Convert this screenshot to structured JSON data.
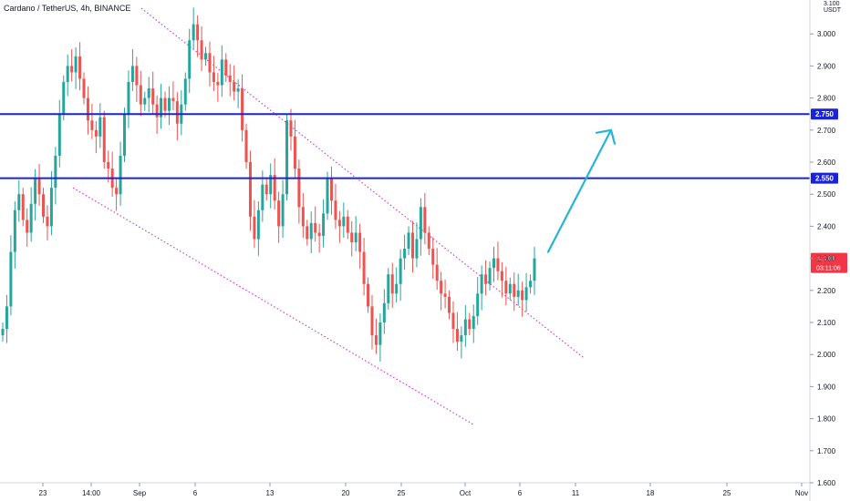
{
  "header": {
    "symbol": "Cardano / TetherUS, 4h, BINANCE"
  },
  "axis": {
    "unit_top": "3.100",
    "unit_label": "USDT"
  },
  "chart_data": {
    "type": "candlestick",
    "symbol": "Cardano / TetherUS",
    "timeframe": "4h",
    "exchange": "BINANCE",
    "y_ticks": [
      "3.000",
      "2.900",
      "2.800",
      "2.700",
      "2.600",
      "2.500",
      "2.400",
      "2.300",
      "2.200",
      "2.100",
      "2.000",
      "1.900",
      "1.800",
      "1.700",
      "1.600"
    ],
    "y_range": [
      1.6,
      3.1
    ],
    "x_ticks": [
      "23",
      "14:00",
      "Sep",
      "6",
      "13",
      "20",
      "25",
      "Oct",
      "6",
      "11",
      "18",
      "25",
      "Nov"
    ],
    "levels": [
      {
        "value": 2.75,
        "label": "2.750",
        "color": "#1a23d6"
      },
      {
        "value": 2.55,
        "label": "2.550",
        "color": "#1a23d6"
      }
    ],
    "last_price": {
      "value": 2.3,
      "label": "2.300",
      "countdown": "03:11:06",
      "color": "#f23645"
    },
    "channel": {
      "upper": {
        "from": [
          0.0,
          3.08
        ],
        "to": [
          1.0,
          2.0
        ]
      },
      "lower": {
        "from": [
          0.0,
          2.52
        ],
        "to": [
          1.0,
          1.78
        ]
      },
      "color": "#d63ad6"
    },
    "forecast_arrow": {
      "from_price": 2.32,
      "to_price": 2.7,
      "color": "#26b5d6"
    },
    "candles_close": [
      2.08,
      2.15,
      2.32,
      2.45,
      2.5,
      2.42,
      2.38,
      2.47,
      2.55,
      2.5,
      2.43,
      2.4,
      2.52,
      2.62,
      2.75,
      2.85,
      2.9,
      2.88,
      2.93,
      2.86,
      2.8,
      2.73,
      2.7,
      2.68,
      2.74,
      2.6,
      2.58,
      2.52,
      2.5,
      2.62,
      2.75,
      2.85,
      2.9,
      2.84,
      2.78,
      2.8,
      2.83,
      2.78,
      2.74,
      2.8,
      2.76,
      2.8,
      2.79,
      2.72,
      2.78,
      2.86,
      2.98,
      3.03,
      2.98,
      2.92,
      2.94,
      2.88,
      2.85,
      2.84,
      2.92,
      2.87,
      2.85,
      2.82,
      2.83,
      2.7,
      2.6,
      2.43,
      2.36,
      2.45,
      2.53,
      2.5,
      2.56,
      2.48,
      2.4,
      2.5,
      2.73,
      2.68,
      2.58,
      2.46,
      2.4,
      2.36,
      2.41,
      2.38,
      2.37,
      2.44,
      2.55,
      2.48,
      2.42,
      2.4,
      2.43,
      2.38,
      2.35,
      2.38,
      2.32,
      2.22,
      2.15,
      2.06,
      2.03,
      2.1,
      2.16,
      2.25,
      2.19,
      2.22,
      2.3,
      2.33,
      2.38,
      2.3,
      2.36,
      2.46,
      2.38,
      2.33,
      2.28,
      2.23,
      2.19,
      2.18,
      2.13,
      2.08,
      2.04,
      2.06,
      2.11,
      2.08,
      2.12,
      2.19,
      2.25,
      2.22,
      2.27,
      2.3,
      2.26,
      2.23,
      2.19,
      2.22,
      2.18,
      2.2,
      2.17,
      2.21,
      2.23,
      2.3
    ]
  }
}
